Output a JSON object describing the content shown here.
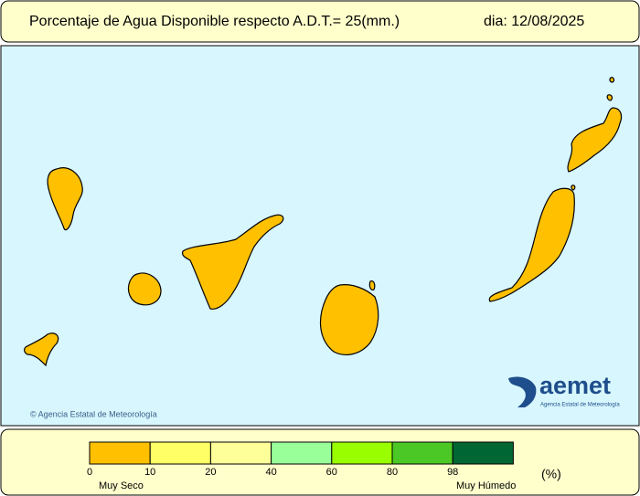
{
  "header": {
    "title": "Porcentaje de Agua Disponible respecto A.D.T.= 25(mm.)",
    "date": "dia: 12/08/2025"
  },
  "map": {
    "copyright": "© Agencia Estatal de Meteorología",
    "logo": {
      "name": "aemet",
      "subtitle": "Agencia Estatal de Meteorología"
    }
  },
  "legend": {
    "colors": [
      "#ffc000",
      "#ffff66",
      "#ffff99",
      "#99ff99",
      "#99ff00",
      "#4cc826",
      "#006633"
    ],
    "ticks": [
      0,
      10,
      20,
      40,
      60,
      80,
      98
    ],
    "low_label": "Muy Seco",
    "high_label": "Muy Húmedo",
    "unit": "(%)"
  }
}
